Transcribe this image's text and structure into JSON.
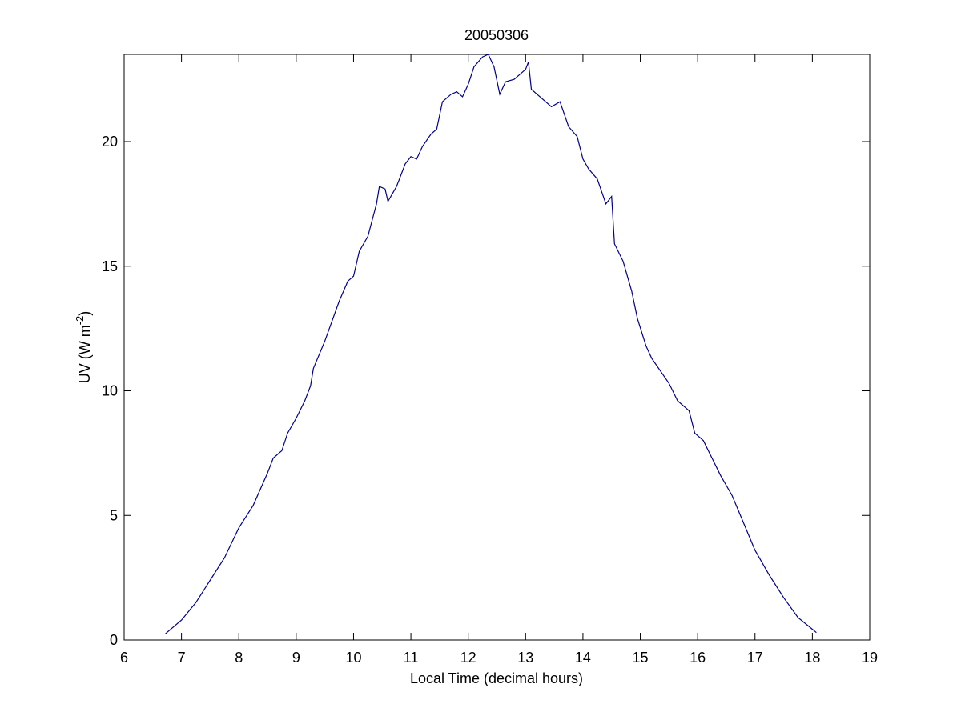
{
  "chart_data": {
    "type": "line",
    "title": "20050306",
    "xlabel": "Local Time (decimal hours)",
    "ylabel": [
      "UV (W m",
      "-2",
      ")"
    ],
    "x": [
      6.72,
      7.0,
      7.25,
      7.5,
      7.75,
      8.0,
      8.25,
      8.5,
      8.6,
      8.75,
      8.85,
      9.0,
      9.15,
      9.25,
      9.3,
      9.5,
      9.75,
      9.9,
      10.0,
      10.1,
      10.25,
      10.4,
      10.45,
      10.55,
      10.6,
      10.75,
      10.9,
      11.0,
      11.1,
      11.2,
      11.35,
      11.45,
      11.55,
      11.7,
      11.8,
      11.9,
      12.0,
      12.1,
      12.25,
      12.35,
      12.45,
      12.55,
      12.65,
      12.8,
      13.0,
      13.05,
      13.1,
      13.3,
      13.45,
      13.6,
      13.75,
      13.9,
      14.0,
      14.1,
      14.25,
      14.4,
      14.5,
      14.55,
      14.7,
      14.85,
      14.95,
      15.1,
      15.2,
      15.35,
      15.5,
      15.65,
      15.85,
      15.95,
      16.1,
      16.25,
      16.4,
      16.6,
      16.8,
      17.0,
      17.25,
      17.5,
      17.75,
      18.07
    ],
    "series": [
      {
        "color": "#00008b",
        "values": [
          0.25,
          0.8,
          1.5,
          2.4,
          3.3,
          4.5,
          5.4,
          6.7,
          7.3,
          7.6,
          8.3,
          8.9,
          9.6,
          10.2,
          10.9,
          12.0,
          13.6,
          14.4,
          14.6,
          15.6,
          16.2,
          17.5,
          18.2,
          18.1,
          17.6,
          18.2,
          19.1,
          19.4,
          19.3,
          19.8,
          20.3,
          20.5,
          21.6,
          21.9,
          22.0,
          21.8,
          22.3,
          23.0,
          23.4,
          23.5,
          23.0,
          21.9,
          22.4,
          22.5,
          22.9,
          23.2,
          22.1,
          21.7,
          21.4,
          21.6,
          20.6,
          20.2,
          19.3,
          18.9,
          18.5,
          17.5,
          17.8,
          15.9,
          15.2,
          14.0,
          12.9,
          11.8,
          11.3,
          10.8,
          10.3,
          9.6,
          9.2,
          8.3,
          8.0,
          7.3,
          6.6,
          5.8,
          4.7,
          3.6,
          2.6,
          1.7,
          0.9,
          0.3
        ]
      }
    ],
    "xlim": [
      6,
      19
    ],
    "xticks": [
      6,
      7,
      8,
      9,
      10,
      11,
      12,
      13,
      14,
      15,
      16,
      17,
      18,
      19
    ],
    "ylim": [
      0,
      23.5
    ],
    "yticks": [
      0,
      5,
      10,
      15,
      20
    ],
    "grid": false
  }
}
